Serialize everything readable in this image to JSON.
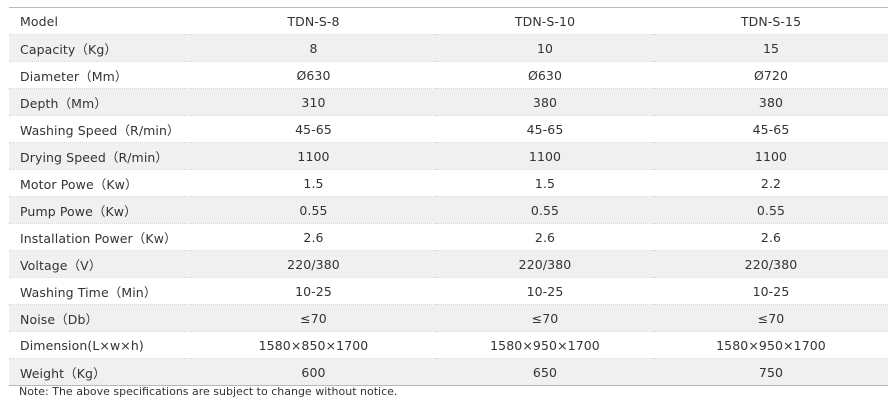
{
  "table": {
    "header": [
      "Model",
      "TDN-S-8",
      "TDN-S-10",
      "TDN-S-15"
    ],
    "rows": [
      [
        "Capacity（Kg）",
        "8",
        "10",
        "15"
      ],
      [
        "Diameter（Mm）",
        "Ø630",
        "Ø630",
        "Ø720"
      ],
      [
        "Depth（Mm）",
        "310",
        "380",
        "380"
      ],
      [
        "Washing Speed（R/min）",
        "45-65",
        "45-65",
        "45-65"
      ],
      [
        "Drying Speed（R/min）",
        "1100",
        "1100",
        "1100"
      ],
      [
        "Motor Powe（Kw）",
        "1.5",
        "1.5",
        "2.2"
      ],
      [
        "Pump Powe（Kw）",
        "0.55",
        "0.55",
        "0.55"
      ],
      [
        "Installation Power（Kw）",
        "2.6",
        "2.6",
        "2.6"
      ],
      [
        "Voltage（V）",
        "220/380",
        "220/380",
        "220/380"
      ],
      [
        "Washing Time（Min）",
        "10-25",
        "10-25",
        "10-25"
      ],
      [
        "Noise（Db）",
        "≤70",
        "≤70",
        "≤70"
      ],
      [
        "Dimension(L×w×h)",
        "1580×850×1700",
        "1580×950×1700",
        "1580×950×1700"
      ],
      [
        "Weight（Kg）",
        "600",
        "650",
        "750"
      ]
    ]
  },
  "note": "Note: The above specifications are subject to change without notice.",
  "colors": {
    "zebra": "#f0f0f0",
    "text": "#333333",
    "rule": "#b8b8b8"
  }
}
